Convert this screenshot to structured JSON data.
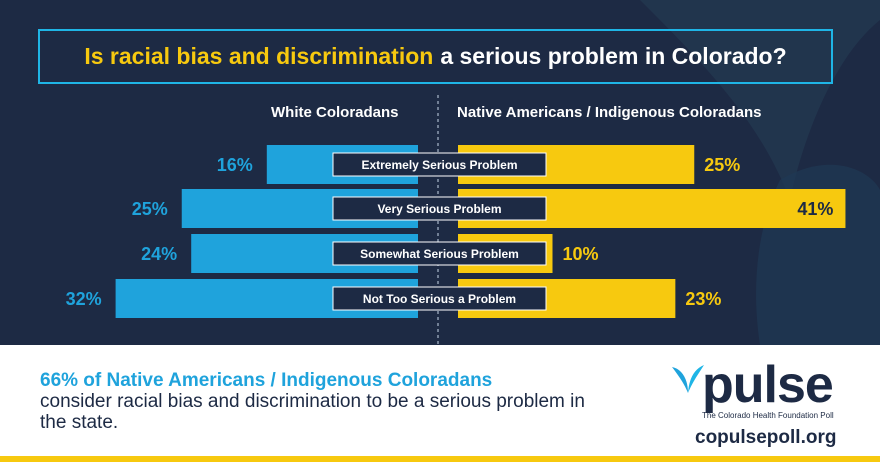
{
  "title": {
    "highlight": "Is racial bias and discrimination",
    "rest": "a serious problem in Colorado?"
  },
  "columns": {
    "left": "White Coloradans",
    "right": "Native Americans / Indigenous Coloradans"
  },
  "colors": {
    "background": "#1d2a44",
    "left_series": "#1fa3dc",
    "right_series": "#f7c90f",
    "accent_blue": "#1fb5e6"
  },
  "chart_data": {
    "type": "bar",
    "categories": [
      "Extremely Serious Problem",
      "Very Serious Problem",
      "Somewhat Serious Problem",
      "Not Too Serious a Problem"
    ],
    "series": [
      {
        "name": "White Coloradans",
        "values": [
          16,
          25,
          24,
          32
        ],
        "labels": [
          "16%",
          "25%",
          "24%",
          "32%"
        ]
      },
      {
        "name": "Native Americans / Indigenous Coloradans",
        "values": [
          25,
          41,
          10,
          23
        ],
        "labels": [
          "25%",
          "41%",
          "10%",
          "23%"
        ]
      }
    ],
    "orientation": "horizontal-diverging"
  },
  "takeaway": {
    "highlight": "66% of Native Americans / Indigenous Coloradans",
    "rest": "consider racial bias and discrimination to be a serious problem in the state."
  },
  "logo": {
    "word": "pulse",
    "tagline": "The Colorado Health Foundation Poll",
    "icon": "leaf-icon"
  },
  "url": "copulsepoll.org"
}
